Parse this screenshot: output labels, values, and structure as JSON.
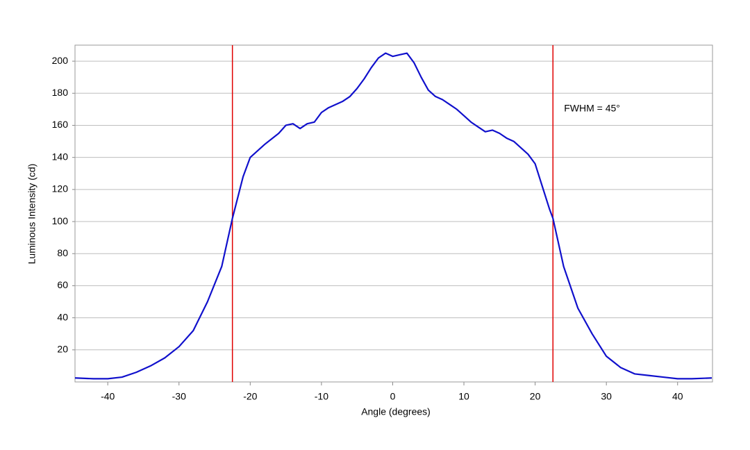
{
  "chart_data": {
    "type": "line",
    "x_label": "Angle (degrees)",
    "y_label": "Luminous Intensity (cd)",
    "annotation": "FWHM = 45°",
    "vlines": [
      -22.5,
      22.5
    ],
    "vline_color": "#e00000",
    "x": [
      -44.6,
      -42,
      -40,
      -38,
      -36,
      -34,
      -32,
      -30,
      -28,
      -26,
      -24,
      -22.5,
      -21,
      -20,
      -18,
      -16,
      -15,
      -14,
      -13,
      -12,
      -11,
      -10,
      -9,
      -8,
      -7,
      -6,
      -5,
      -4,
      -3,
      -2,
      -1,
      0,
      1,
      2,
      3,
      4,
      5,
      6,
      7,
      8,
      9,
      10,
      11,
      12,
      13,
      14,
      15,
      16,
      17,
      18,
      19,
      20,
      21,
      22,
      22.5,
      24,
      26,
      28,
      30,
      32,
      34,
      36,
      38,
      40,
      42,
      44.8
    ],
    "series": [
      {
        "name": "Luminous Intensity",
        "color": "#1010cc",
        "values": [
          2.5,
          2,
          2,
          3,
          6,
          10,
          15,
          22,
          32,
          50,
          72,
          102,
          128,
          140,
          148,
          155,
          160,
          161,
          158,
          161,
          162,
          168,
          171,
          173,
          175,
          178,
          183,
          189,
          196,
          202,
          205,
          203,
          204,
          205,
          199,
          190,
          182,
          178,
          176,
          173,
          170,
          166,
          162,
          159,
          156,
          157,
          155,
          152,
          150,
          146,
          142,
          136,
          122,
          108,
          102,
          72,
          46,
          30,
          16,
          9,
          5,
          4,
          3,
          2,
          2,
          2.5
        ]
      }
    ],
    "xlim": [
      -44.6,
      44.9
    ],
    "ylim": [
      0,
      210
    ],
    "xticks": [
      -40,
      -30,
      -20,
      -10,
      0,
      10,
      20,
      30,
      40
    ],
    "yticks": [
      20,
      40,
      60,
      80,
      100,
      120,
      140,
      160,
      180,
      200
    ],
    "grid": true
  }
}
